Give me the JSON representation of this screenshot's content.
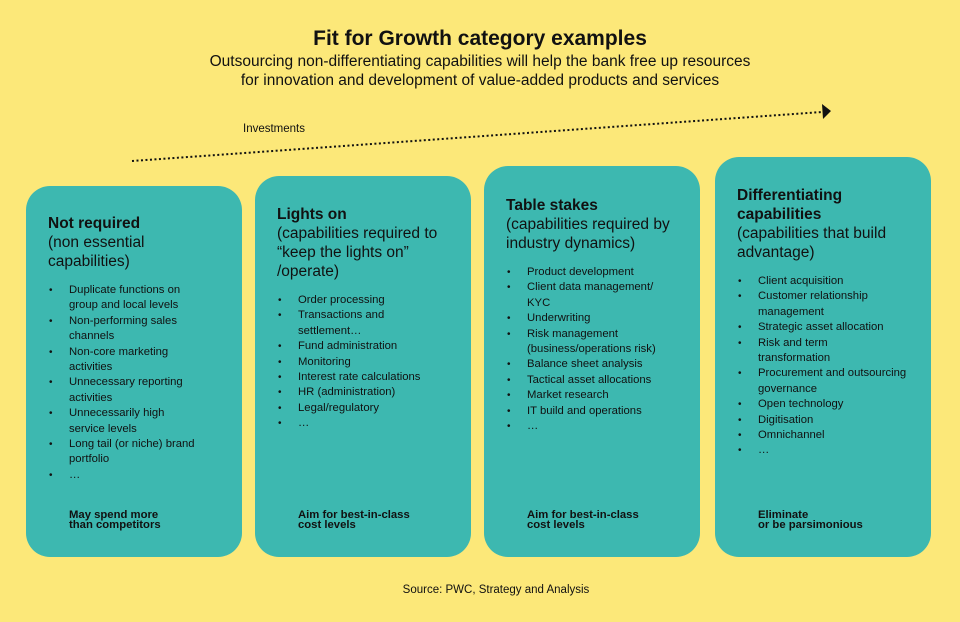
{
  "header": {
    "title": "Fit for Growth category examples",
    "subtitle_lines": [
      "Outsourcing non-differentiating capabilities will help the bank free up resources",
      "for innovation and development of value-added products and services"
    ]
  },
  "arrow": {
    "label": "Investments"
  },
  "cards": [
    {
      "title": "Not required",
      "subtitle": "(non essential capabilities)",
      "items": [
        "Duplicate functions on group and local levels",
        "Non-performing sales channels",
        "Non-core marketing activities",
        "Unnecessary reporting activities",
        "Unnecessarily high service levels",
        "Long tail (or niche) brand portfolio",
        "…"
      ],
      "footer_lines": [
        "May spend more",
        "than competitors"
      ]
    },
    {
      "title": "Lights on",
      "subtitle": "(capabilities required to “keep the lights on” /operate)",
      "items": [
        "Order processing",
        "Transactions and settlement…",
        "Fund administration",
        "Monitoring",
        "Interest rate calculations",
        "HR (administration)",
        "Legal/regulatory",
        "…"
      ],
      "footer_lines": [
        "Aim for best-in-class",
        "cost levels"
      ]
    },
    {
      "title": "Table stakes",
      "subtitle": "(capabilities required by industry dynamics)",
      "items": [
        "Product development",
        "Client data management/ KYC",
        "Underwriting",
        "Risk management (business/operations risk)",
        "Balance sheet analysis",
        "Tactical asset allocations",
        "Market research",
        "IT build and operations",
        "…"
      ],
      "footer_lines": [
        "Aim for best-in-class",
        "cost levels"
      ]
    },
    {
      "title": "Differentiating capabilities",
      "subtitle": "(capabilities that build advantage)",
      "items": [
        "Client acquisition",
        "Customer relationship management",
        "Strategic asset allocation",
        "Risk and term transformation",
        "Procurement and outsourcing governance",
        "Open technology",
        "Digitisation",
        "Omnichannel",
        "…"
      ],
      "footer_lines": [
        "Eliminate",
        "or be parsimonious"
      ]
    }
  ],
  "source": "Source: PWC, Strategy and Analysis",
  "colors": {
    "background": "#FCE879",
    "card": "#3DB8B0",
    "text": "#111111"
  }
}
